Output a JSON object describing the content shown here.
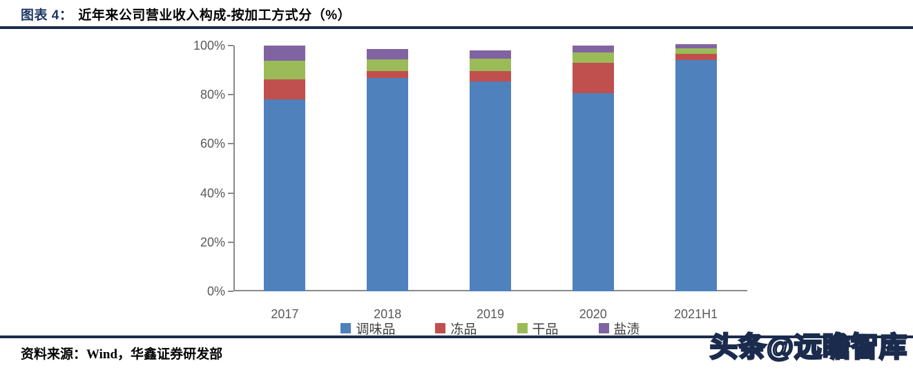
{
  "header": {
    "prefix": "图表 4：",
    "title": "近年来公司营业收入构成-按加工方式分（%）"
  },
  "footer": {
    "source": "资料来源：Wind，华鑫证券研发部",
    "watermark": "头条@远瞻智库"
  },
  "colors": {
    "rule_navy": "#1b2b4d",
    "title_navy": "#1f3864",
    "axis_gray": "#898989",
    "tick_text_gray": "#595959",
    "series_blue": "#4F81BD",
    "series_red": "#C0504D",
    "series_green": "#9BBB59",
    "series_purple": "#8064A2"
  },
  "chart_data": {
    "type": "bar",
    "stacked": true,
    "title": "近年来公司营业收入构成-按加工方式分（%）",
    "xlabel": "",
    "ylabel": "",
    "ylim": [
      0,
      100
    ],
    "yticks": [
      0,
      20,
      40,
      60,
      80,
      100
    ],
    "ytick_labels": [
      "0%",
      "20%",
      "40%",
      "60%",
      "80%",
      "100%"
    ],
    "grid": false,
    "legend_position": "bottom",
    "categories": [
      "2017",
      "2018",
      "2019",
      "2020",
      "2021H1"
    ],
    "series": [
      {
        "name": "调味品",
        "color": "#4F81BD",
        "values": [
          78.2,
          86.8,
          85.4,
          80.7,
          94.1
        ]
      },
      {
        "name": "冻品",
        "color": "#C0504D",
        "values": [
          8.1,
          2.8,
          4.2,
          12.2,
          2.4
        ]
      },
      {
        "name": "干品",
        "color": "#9BBB59",
        "values": [
          7.5,
          4.7,
          5.1,
          4.2,
          2.5
        ]
      },
      {
        "name": "盐渍",
        "color": "#8064A2",
        "values": [
          6.2,
          4.3,
          3.4,
          3.0,
          1.5
        ]
      }
    ]
  }
}
